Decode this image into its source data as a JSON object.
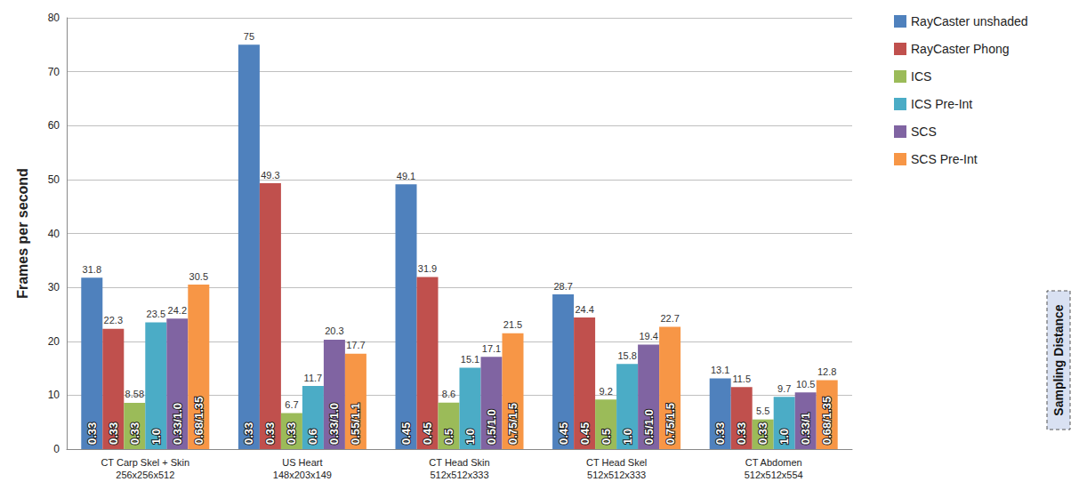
{
  "chart_data": {
    "type": "bar",
    "y_label": "Frames per second",
    "categories": [
      "CT Carp Skel + Skin\n256x256x512",
      "US Heart\n148x203x149",
      "CT Head Skin\n512x512x333",
      "CT Head Skel\n512x512x333",
      "CT Abdomen\n512x512x554"
    ],
    "series": [
      {
        "name": "RayCaster unshaded",
        "color": "#4f81bd",
        "values": [
          31.8,
          75,
          49.1,
          28.7,
          13.1
        ],
        "sampling_distance": [
          "0.33",
          "0.33",
          "0.45",
          "0.45",
          "0.33"
        ]
      },
      {
        "name": "RayCaster Phong",
        "color": "#c0504d",
        "values": [
          22.3,
          49.3,
          31.9,
          24.4,
          11.5
        ],
        "sampling_distance": [
          "0.33",
          "0.33",
          "0.45",
          "0.45",
          "0.33"
        ]
      },
      {
        "name": "ICS",
        "color": "#9bbb59",
        "values": [
          8.58,
          6.7,
          8.6,
          9.2,
          5.5
        ],
        "sampling_distance": [
          "0.33",
          "0.33",
          "0.5",
          "0.5",
          "0.33"
        ]
      },
      {
        "name": "ICS Pre-Int",
        "color": "#4bacc6",
        "values": [
          23.5,
          11.7,
          15.1,
          15.8,
          9.7
        ],
        "sampling_distance": [
          "1.0",
          "0.6",
          "1.0",
          "1.0",
          "1.0"
        ]
      },
      {
        "name": "SCS",
        "color": "#8064a2",
        "values": [
          24.2,
          20.3,
          17.1,
          19.4,
          10.5
        ],
        "sampling_distance": [
          "0.33/1.0",
          "0.33/1.0",
          "0.5/1.0",
          "0.5/1.0",
          "0.33/1"
        ]
      },
      {
        "name": "SCS Pre-Int",
        "color": "#f79646",
        "values": [
          30.5,
          17.7,
          21.5,
          22.7,
          12.8
        ],
        "sampling_distance": [
          "0.68/1.35",
          "0.55/1.1",
          "0.75/1.5",
          "0.75/1.5",
          "0.68/1.35"
        ]
      }
    ],
    "ylim": [
      0,
      80
    ],
    "yticks": [
      0,
      10,
      20,
      30,
      40,
      50,
      60,
      70,
      80
    ],
    "grid": true,
    "legend": "right",
    "data_labels": true,
    "annotation": "Sampling Distance"
  }
}
